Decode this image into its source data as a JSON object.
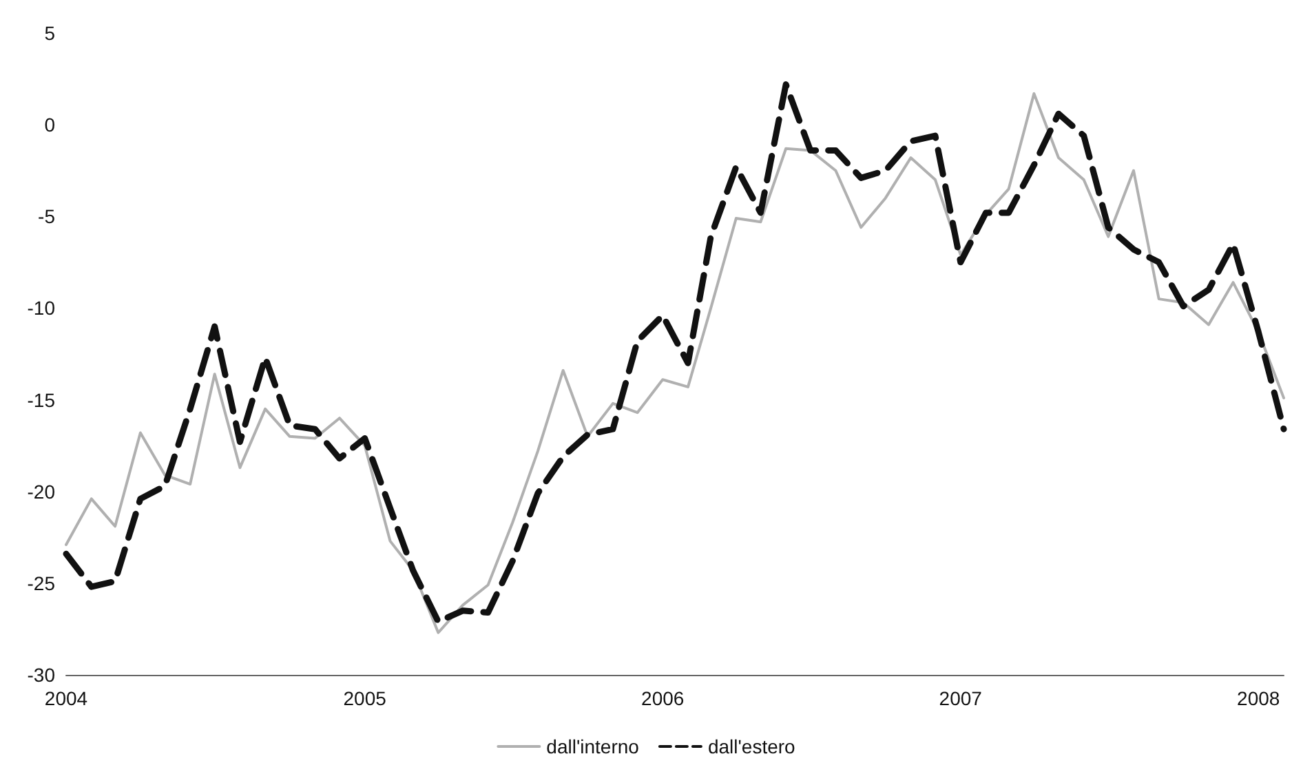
{
  "chart_data": {
    "type": "line",
    "x": [
      "2004-01",
      "2004-02",
      "2004-03",
      "2004-04",
      "2004-05",
      "2004-06",
      "2004-07",
      "2004-08",
      "2004-09",
      "2004-10",
      "2004-11",
      "2004-12",
      "2005-01",
      "2005-02",
      "2005-03",
      "2005-04",
      "2005-05",
      "2005-06",
      "2005-07",
      "2005-08",
      "2005-09",
      "2005-10",
      "2005-11",
      "2005-12",
      "2006-01",
      "2006-02",
      "2006-03",
      "2006-04",
      "2006-05",
      "2006-06",
      "2006-07",
      "2006-08",
      "2006-09",
      "2006-10",
      "2006-11",
      "2006-12",
      "2007-01",
      "2007-02",
      "2007-03",
      "2007-04",
      "2007-05",
      "2007-06",
      "2007-07",
      "2007-08",
      "2007-09",
      "2007-10",
      "2007-11",
      "2007-12",
      "2008-01",
      "2008-02"
    ],
    "series": [
      {
        "name": "dall'interno",
        "color": "#b0b0b0",
        "line_style": "solid",
        "values": [
          -22.9,
          -20.4,
          -21.9,
          -16.8,
          -19.1,
          -19.6,
          -13.6,
          -18.7,
          -15.5,
          -17.0,
          -17.1,
          -16.0,
          -17.5,
          -22.7,
          -24.3,
          -27.7,
          -26.2,
          -25.1,
          -21.7,
          -17.8,
          -13.4,
          -17.0,
          -15.2,
          -15.7,
          -13.9,
          -14.3,
          -10.0,
          -5.1,
          -5.3,
          -1.3,
          -1.4,
          -2.5,
          -5.6,
          -4.0,
          -1.8,
          -3.0,
          -7.1,
          -4.9,
          -3.5,
          1.7,
          -1.8,
          -3.0,
          -6.1,
          -2.5,
          -9.5,
          -9.7,
          -10.9,
          -8.6,
          -11.3,
          -14.9
        ]
      },
      {
        "name": "dall'estero",
        "color": "#111111",
        "line_style": "dashed",
        "values": [
          -23.4,
          -25.2,
          -24.9,
          -20.4,
          -19.7,
          -15.5,
          -11.0,
          -17.3,
          -12.7,
          -16.4,
          -16.6,
          -18.2,
          -17.1,
          -20.9,
          -24.3,
          -27.1,
          -26.5,
          -26.6,
          -23.8,
          -20.1,
          -18.1,
          -16.9,
          -16.6,
          -11.8,
          -10.4,
          -13.0,
          -6.1,
          -2.3,
          -4.8,
          2.2,
          -1.4,
          -1.4,
          -2.9,
          -2.5,
          -0.9,
          -0.6,
          -7.5,
          -4.8,
          -4.8,
          -2.2,
          0.6,
          -0.6,
          -5.6,
          -6.8,
          -7.5,
          -9.9,
          -9.0,
          -6.5,
          -11.3,
          -16.6
        ]
      }
    ],
    "xlim": [
      "2004-01",
      "2008-02"
    ],
    "xticks": [
      "2004",
      "2005",
      "2006",
      "2007",
      "2008"
    ],
    "ylim": [
      -30,
      5
    ],
    "yticks": [
      -30,
      -25,
      -20,
      -15,
      -10,
      -5,
      0,
      5
    ],
    "grid": false,
    "legend": "bottom",
    "marker": "none"
  }
}
